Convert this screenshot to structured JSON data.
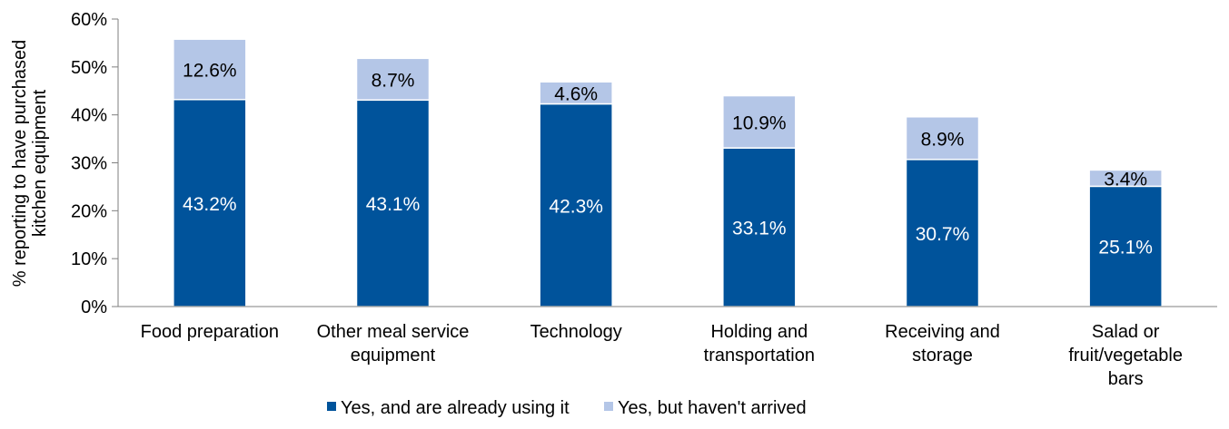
{
  "chart_data": {
    "type": "bar",
    "stacked": true,
    "title": "",
    "xlabel": "",
    "ylabel": [
      "% reporting to have purchased",
      "kitchen equipment"
    ],
    "ylim": [
      0,
      60
    ],
    "yticks": [
      0,
      10,
      20,
      30,
      40,
      50,
      60
    ],
    "ytick_labels": [
      "0%",
      "10%",
      "20%",
      "30%",
      "40%",
      "50%",
      "60%"
    ],
    "grid": false,
    "legend_position": "bottom",
    "categories": [
      [
        "Food preparation"
      ],
      [
        "Other meal service",
        "equipment"
      ],
      [
        "Technology"
      ],
      [
        "Holding and",
        "transportation"
      ],
      [
        "Receiving and",
        "storage"
      ],
      [
        "Salad or",
        "fruit/vegetable",
        "bars"
      ]
    ],
    "series": [
      {
        "name": "Yes, and are already using it",
        "color": "#00539b",
        "label_color": "#ffffff",
        "values": [
          43.2,
          43.1,
          42.3,
          33.1,
          30.7,
          25.1
        ],
        "labels": [
          "43.2%",
          "43.1%",
          "42.3%",
          "33.1%",
          "30.7%",
          "25.1%"
        ]
      },
      {
        "name": "Yes, but haven't arrived",
        "color": "#b4c6e7",
        "label_color": "#000000",
        "values": [
          12.6,
          8.7,
          4.6,
          10.9,
          8.9,
          3.4
        ],
        "labels": [
          "12.6%",
          "8.7%",
          "4.6%",
          "10.9%",
          "8.9%",
          "3.4%"
        ]
      }
    ]
  }
}
